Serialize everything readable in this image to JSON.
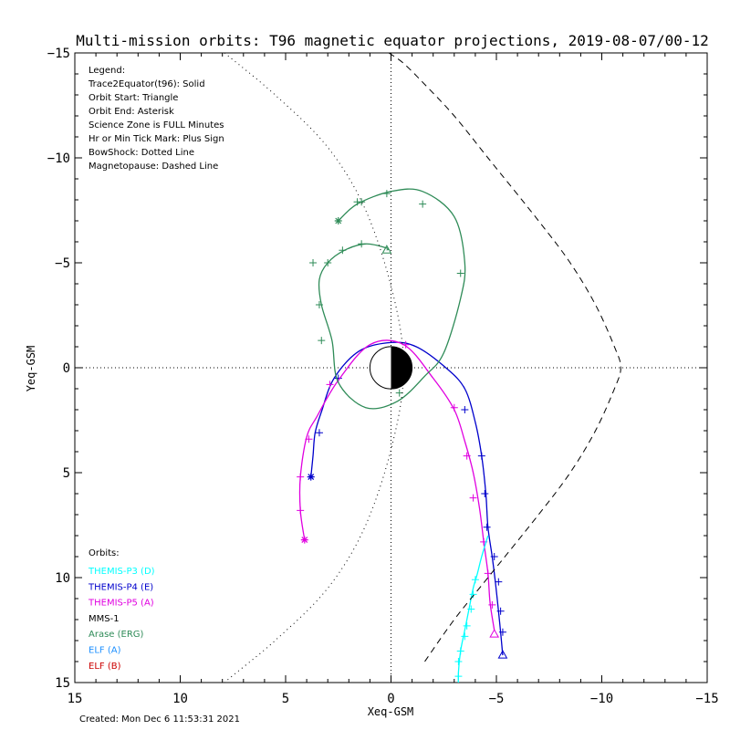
{
  "chart_data": {
    "type": "line",
    "title": "Multi-mission orbits: T96 magnetic equator projections, 2019-08-07/00-12",
    "xlabel": "Xeq-GSM",
    "ylabel": "Yeq-GSM",
    "xlim": [
      15,
      -15
    ],
    "ylim": [
      15,
      -15
    ],
    "x_ticks": [
      15,
      10,
      5,
      0,
      -5,
      -10,
      -15
    ],
    "y_ticks": [
      -15,
      -10,
      -5,
      0,
      5,
      10,
      15
    ],
    "created": "Created: Mon Dec  6 11:53:31 2021",
    "legend_lines": [
      "Legend:",
      "Trace2Equator(t96): Solid",
      "Orbit Start: Triangle",
      "Orbit End: Asterisk",
      "Science Zone is FULL Minutes",
      "Hr or Min Tick Mark: Plus Sign",
      "BowShock: Dotted Line",
      "Magnetopause: Dashed Line"
    ],
    "orbits_label": "Orbits:",
    "orbit_legend": [
      {
        "label": "THEMIS-P3 (D)",
        "color": "#00ffff"
      },
      {
        "label": "THEMIS-P4 (E)",
        "color": "#0000cc"
      },
      {
        "label": "THEMIS-P5 (A)",
        "color": "#e000e0"
      },
      {
        "label": "MMS-1",
        "color": "#000000"
      },
      {
        "label": "Arase (ERG)",
        "color": "#2e8b57"
      },
      {
        "label": "ELF (A)",
        "color": "#1e90ff"
      },
      {
        "label": "ELF (B)",
        "color": "#cc0000"
      }
    ],
    "series": [
      {
        "name": "THEMIS-P4 (E)",
        "color": "#0000cc",
        "x": [
          -5.3,
          -5.2,
          -5.1,
          -4.95,
          -4.8,
          -4.6,
          -4.5,
          -4.3,
          -4.0,
          -3.5,
          -2.6,
          -1.2,
          0,
          1.5,
          2.7,
          3.3,
          3.6,
          3.7,
          3.8
        ],
        "y": [
          13.7,
          12.6,
          11.6,
          10.2,
          9.0,
          7.6,
          6.0,
          4.2,
          2.6,
          1.0,
          0.0,
          -1.0,
          -1.2,
          -0.8,
          0.5,
          2.1,
          3.1,
          4.2,
          5.2
        ],
        "ticks": [
          [
            -5.3,
            12.6
          ],
          [
            -5.2,
            11.6
          ],
          [
            -5.1,
            10.2
          ],
          [
            -4.9,
            9.0
          ],
          [
            -4.55,
            7.6
          ],
          [
            -4.45,
            6.0
          ],
          [
            -4.3,
            4.2
          ],
          [
            -3.5,
            2.0
          ],
          [
            2.5,
            0.5
          ],
          [
            3.4,
            3.1
          ]
        ],
        "start": [
          -5.3,
          13.7
        ],
        "end": [
          3.8,
          5.2
        ]
      },
      {
        "name": "THEMIS-P5 (A)",
        "color": "#e000e0",
        "x": [
          -4.9,
          -4.7,
          -4.6,
          -4.4,
          -4.2,
          -3.9,
          -3.5,
          -3.0,
          -2.0,
          -0.6,
          1.0,
          2.5,
          3.5,
          4.0,
          4.3,
          4.3,
          4.1
        ],
        "y": [
          12.5,
          11.2,
          9.8,
          8.3,
          6.7,
          5.0,
          3.5,
          2.0,
          0.5,
          -1.1,
          -1.1,
          0.6,
          2.3,
          3.3,
          5.2,
          6.8,
          8.2
        ],
        "ticks": [
          [
            -4.8,
            11.3
          ],
          [
            -4.6,
            9.8
          ],
          [
            -4.4,
            8.3
          ],
          [
            -3.9,
            6.2
          ],
          [
            -3.6,
            4.2
          ],
          [
            -3.0,
            1.9
          ],
          [
            -0.7,
            -1.1
          ],
          [
            2.9,
            0.8
          ],
          [
            3.9,
            3.4
          ],
          [
            4.3,
            5.2
          ],
          [
            4.3,
            6.8
          ]
        ],
        "start": [
          -4.9,
          12.7
        ],
        "end": [
          4.1,
          8.2
        ]
      },
      {
        "name": "THEMIS-P3 (D)",
        "color": "#00ffff",
        "x": [
          -3.2,
          -3.2,
          -3.3,
          -3.5,
          -3.7,
          -3.9,
          -4.1,
          -4.3,
          -4.6
        ],
        "y": [
          15.4,
          14.5,
          13.5,
          12.5,
          11.5,
          10.5,
          9.8,
          9.0,
          8.0
        ],
        "ticks": [
          [
            -3.2,
            15.2
          ],
          [
            -3.2,
            14.7
          ],
          [
            -3.2,
            14.0
          ],
          [
            -3.3,
            13.5
          ],
          [
            -3.5,
            12.8
          ],
          [
            -3.6,
            12.3
          ],
          [
            -3.8,
            11.5
          ],
          [
            -3.9,
            10.8
          ],
          [
            -4.0,
            10.1
          ]
        ],
        "start": null,
        "end": null
      },
      {
        "name": "Arase (ERG)",
        "color": "#2e8b57",
        "x": [
          0.2,
          0.2,
          1.2,
          2.2,
          3.0,
          3.4,
          3.3,
          2.8,
          2.5,
          1.2,
          -0.3,
          -1.6,
          -2.5,
          -3.3,
          -3.5,
          -3.0,
          -1.5,
          0,
          1.6,
          2.5
        ],
        "y": [
          -5.6,
          -5.7,
          -5.9,
          -5.6,
          -5.0,
          -4.2,
          -3.0,
          -1.3,
          0.7,
          1.9,
          1.6,
          0.4,
          -0.7,
          -3.3,
          -5.0,
          -7.2,
          -8.4,
          -8.4,
          -7.8,
          -7.0
        ],
        "ticks": [
          [
            1.4,
            -5.9
          ],
          [
            2.3,
            -5.6
          ],
          [
            3.0,
            -5.0
          ],
          [
            3.4,
            -3.0
          ],
          [
            3.3,
            -1.3
          ],
          [
            -0.4,
            1.2
          ],
          [
            -3.3,
            -4.5
          ],
          [
            -1.5,
            -7.8
          ],
          [
            0.2,
            -8.3
          ],
          [
            1.6,
            -7.9
          ],
          [
            3.7,
            -5.0
          ],
          [
            1.4,
            -7.9
          ]
        ],
        "start": [
          0.2,
          -5.6
        ],
        "end": [
          2.5,
          -7.0
        ]
      },
      {
        "name": "BowShock",
        "color": "#000000",
        "style": "dotted",
        "x": [
          7.9,
          5.5,
          3.0,
          1.2,
          -0.1,
          -0.6,
          -0.1,
          1.2,
          3.0,
          5.5,
          7.9,
          9.5
        ],
        "y": [
          -15,
          -13.0,
          -10.5,
          -7.5,
          -3.5,
          0,
          3.5,
          7.5,
          10.5,
          13.0,
          15,
          16.5
        ],
        "ticks": [],
        "start": null,
        "end": null
      },
      {
        "name": "Magnetopause",
        "color": "#000000",
        "style": "dashed",
        "x": [
          0.1,
          -0.6,
          -1.6,
          -3.0,
          -4.6,
          -7.0,
          -8.5,
          -9.7,
          -10.6,
          -10.9,
          -10.6,
          -9.7,
          -8.5,
          -7.0,
          -4.6,
          -3.0,
          -1.6
        ],
        "y": [
          -15,
          -14.5,
          -13.5,
          -12.0,
          -10.0,
          -7.0,
          -5.0,
          -3.0,
          -1.0,
          0,
          1.0,
          3.0,
          5.0,
          7.0,
          10.0,
          12.0,
          14.0
        ],
        "ticks": [],
        "start": null,
        "end": null
      }
    ]
  }
}
